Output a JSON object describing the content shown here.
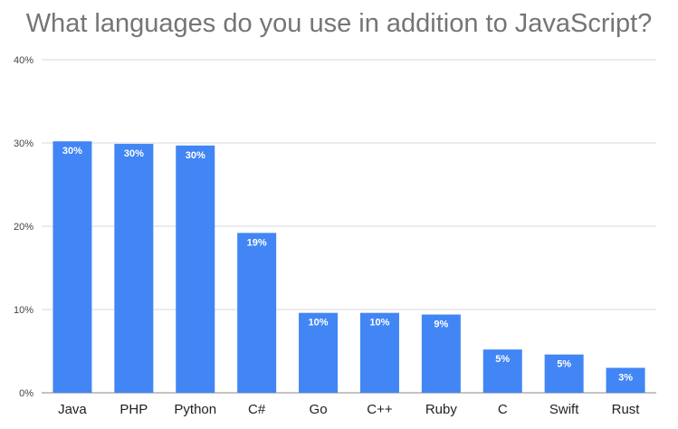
{
  "chart_data": {
    "type": "bar",
    "title": "What languages do you use in addition to JavaScript?",
    "xlabel": "",
    "ylabel": "",
    "categories": [
      "Java",
      "PHP",
      "Python",
      "C#",
      "Go",
      "C++",
      "Ruby",
      "C",
      "Swift",
      "Rust"
    ],
    "values": [
      30.2,
      29.9,
      29.7,
      19.2,
      9.6,
      9.6,
      9.4,
      5.2,
      4.6,
      3.0
    ],
    "data_labels": [
      "30%",
      "30%",
      "30%",
      "19%",
      "10%",
      "10%",
      "9%",
      "5%",
      "5%",
      "3%"
    ],
    "ylim": [
      0,
      40
    ],
    "yticks": [
      0,
      10,
      20,
      30,
      40
    ],
    "ytick_labels": [
      "0%",
      "10%",
      "20%",
      "30%",
      "40%"
    ],
    "grid": true,
    "legend": "none",
    "colors": {
      "bar": "#4285f4",
      "grid": "#d9d9d9",
      "title": "#757575"
    }
  }
}
